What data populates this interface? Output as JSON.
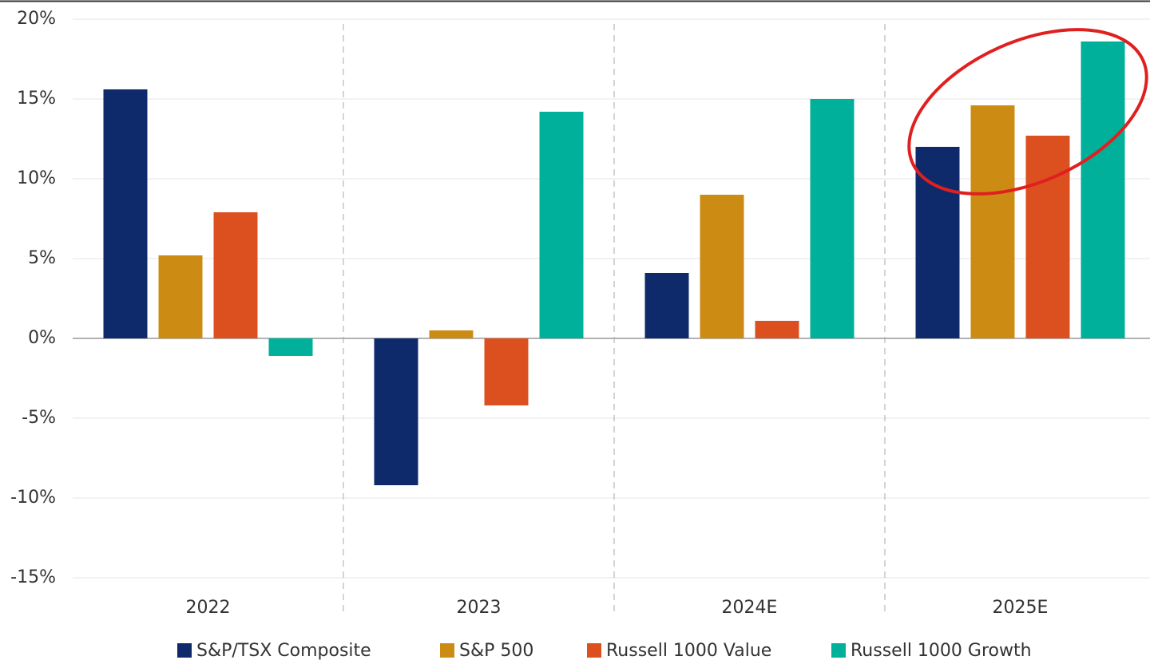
{
  "chart_data": {
    "type": "bar",
    "categories": [
      "2022",
      "2023",
      "2024E",
      "2025E"
    ],
    "series": [
      {
        "name": "S&P/TSX Composite",
        "color": "#0f2a6b",
        "values": [
          15.6,
          -9.2,
          4.1,
          12.0
        ]
      },
      {
        "name": "S&P 500",
        "color": "#cc8c14",
        "values": [
          5.2,
          0.5,
          9.0,
          14.6
        ]
      },
      {
        "name": "Russell 1000 Value",
        "color": "#dc5020",
        "values": [
          7.9,
          -4.2,
          1.1,
          12.7
        ]
      },
      {
        "name": "Russell 1000 Growth",
        "color": "#00b09a",
        "values": [
          -1.1,
          14.2,
          15.0,
          18.6
        ]
      }
    ],
    "ylim": [
      -15,
      20
    ],
    "yticks": [
      {
        "value": -15,
        "label": "-15%"
      },
      {
        "value": -10,
        "label": "-10%"
      },
      {
        "value": -5,
        "label": "-5%"
      },
      {
        "value": 0,
        "label": "0%"
      },
      {
        "value": 5,
        "label": "5%"
      },
      {
        "value": 10,
        "label": "10%"
      },
      {
        "value": 15,
        "label": "15%"
      },
      {
        "value": 20,
        "label": "20%"
      }
    ],
    "grid": true,
    "legend": "bottom"
  }
}
